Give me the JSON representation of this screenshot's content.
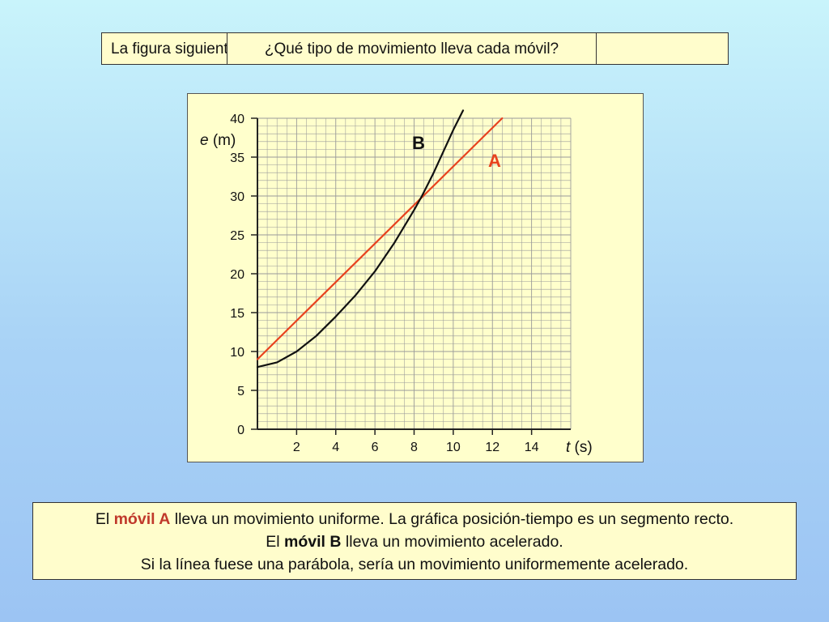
{
  "header": {
    "intro_text": "La figura siguiente muestra la gráfica posición-tiempo de dos móviles.",
    "question_text": "¿Qué tipo de movimiento lleva cada móvil?"
  },
  "answer": {
    "line1_pre": "El ",
    "line1_hl": "móvil A",
    "line1_post": " lleva un movimiento uniforme. La gráfica posición-tiempo es un segmento recto.",
    "line2_pre": "El ",
    "line2_hl": "móvil B",
    "line2_post": " lleva un movimiento acelerado.",
    "line3": "Si la línea fuese una parábola, sería un movimiento uniformemente acelerado."
  },
  "colors": {
    "series_a": "#e8421e",
    "series_b": "#111111",
    "grid": "#9a9a9a",
    "highlight": "#c0392b"
  },
  "chart_data": {
    "type": "line",
    "xlabel_italic": "t",
    "xlabel_unit": " (s)",
    "ylabel_italic": "e",
    "ylabel_unit": " (m)",
    "xlim": [
      0,
      16
    ],
    "ylim": [
      0,
      40
    ],
    "x_ticks": [
      2,
      4,
      6,
      8,
      10,
      12,
      14
    ],
    "y_ticks": [
      0,
      5,
      10,
      15,
      20,
      25,
      30,
      35,
      40
    ],
    "grid": true,
    "series": [
      {
        "name": "A",
        "color": "#e8421e",
        "x": [
          0,
          12.5
        ],
        "y": [
          9,
          40
        ]
      },
      {
        "name": "B",
        "color": "#111111",
        "x": [
          0,
          1,
          2,
          3,
          4,
          5,
          6,
          7,
          8,
          8.4,
          9,
          10,
          10.5
        ],
        "y": [
          8,
          8.6,
          10,
          12,
          14.5,
          17.2,
          20.3,
          24,
          28.2,
          30,
          33,
          38.5,
          41
        ]
      }
    ]
  }
}
